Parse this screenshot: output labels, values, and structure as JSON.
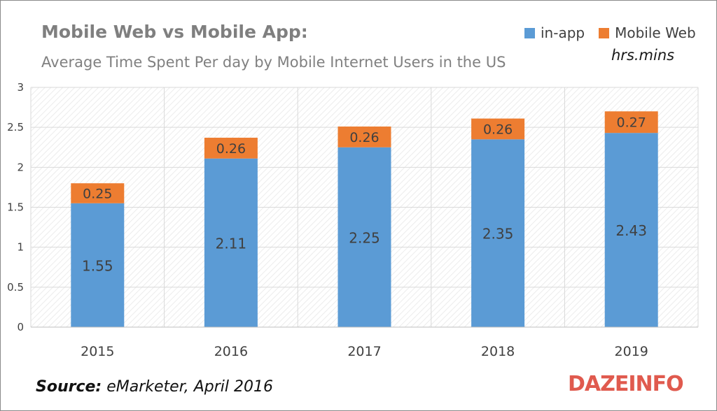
{
  "header": {
    "title": "Mobile Web vs Mobile App:",
    "subtitle": "Average Time Spent Per day by Mobile Internet Users in the US",
    "units": "hrs.mins"
  },
  "footer": {
    "source_label": "Source:",
    "source_text": "eMarketer, April 2016",
    "logo_text": "DAZEINFO"
  },
  "colors": {
    "in_app": "#5b9bd5",
    "mobile_web": "#ed7d31",
    "grid": "#d9d9d9",
    "logo": "#e05a4e"
  },
  "chart_data": {
    "type": "bar",
    "stacked": true,
    "categories": [
      "2015",
      "2016",
      "2017",
      "2018",
      "2019"
    ],
    "series": [
      {
        "name": "in-app",
        "values": [
          1.55,
          2.11,
          2.25,
          2.35,
          2.43
        ],
        "labels": [
          "1.55",
          "2.11",
          "2.25",
          "2.35",
          "2.43"
        ]
      },
      {
        "name": "Mobile Web",
        "values": [
          0.25,
          0.26,
          0.26,
          0.26,
          0.27
        ],
        "labels": [
          "0.25",
          "0.26",
          "0.26",
          "0.26",
          "0.27"
        ]
      }
    ],
    "ylim": [
      0,
      3
    ],
    "yticks": [
      "0",
      "0.5",
      "1",
      "1.5",
      "2",
      "2.5",
      "3"
    ],
    "grid": true,
    "legend_position": "top-right"
  }
}
